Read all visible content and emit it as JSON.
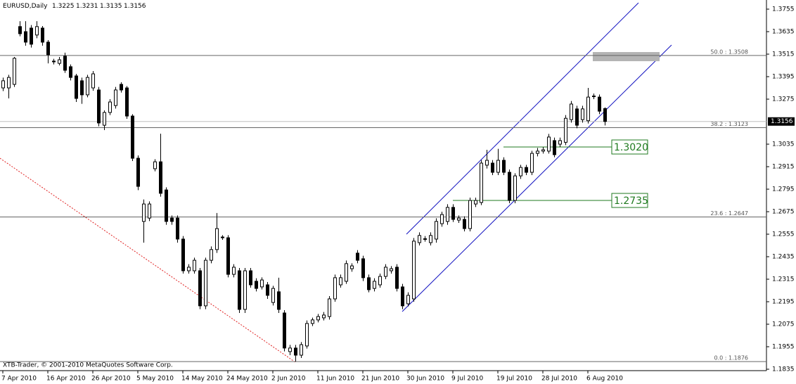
{
  "chart_data": {
    "type": "candlestick",
    "title": "EURUSD,Daily",
    "watermark": "XTB-Trader, © 2001-2010 MetaQuotes Software Corp.",
    "categories": [
      "7 Apr 2010",
      null,
      null,
      null,
      null,
      null,
      null,
      null,
      "16 Apr 2010",
      null,
      null,
      null,
      null,
      null,
      null,
      null,
      "26 Apr 2010",
      null,
      null,
      null,
      null,
      null,
      null,
      null,
      "5 May 2010",
      null,
      null,
      null,
      null,
      null,
      null,
      null,
      "14 May 2010",
      null,
      null,
      null,
      null,
      null,
      null,
      null,
      "24 May 2010",
      null,
      null,
      null,
      null,
      null,
      null,
      null,
      "2 Jun 2010",
      null,
      null,
      null,
      null,
      null,
      null,
      null,
      "11 Jun 2010",
      null,
      null,
      null,
      null,
      null,
      null,
      null,
      "21 Jun 2010",
      null,
      null,
      null,
      null,
      null,
      null,
      null,
      "30 Jun 2010",
      null,
      null,
      null,
      null,
      null,
      null,
      null,
      "9 Jul 2010",
      null,
      null,
      null,
      null,
      null,
      null,
      null,
      "19 Jul 2010",
      null,
      null,
      null,
      null,
      null,
      null,
      null,
      "28 Jul 2010",
      null,
      null,
      null,
      null,
      null,
      null,
      null,
      "6 Aug 2010",
      null,
      null,
      null
    ],
    "open": [
      1.3335,
      1.3335,
      1.3354,
      1.3662,
      1.3635,
      1.3654,
      1.3617,
      1.3654,
      1.3579,
      1.3478,
      1.3466,
      1.3504,
      1.3448,
      1.3399,
      1.3373,
      1.3298,
      1.3335,
      1.3324,
      1.3136,
      1.3204,
      1.3241,
      1.3354,
      1.3335,
      1.3185,
      1.296,
      1.2623,
      1.2641,
      1.2904,
      1.2941,
      1.2791,
      1.2641,
      1.2641,
      1.2529,
      1.236,
      1.236,
      1.236,
      1.2173,
      1.2416,
      1.2473,
      1.254,
      1.2536,
      1.2341,
      1.236,
      1.2154,
      1.236,
      1.2304,
      1.2274,
      1.2285,
      1.2191,
      1.2248,
      1.2135,
      1.1929,
      1.1948,
      1.191,
      1.1959,
      1.2079,
      1.2098,
      1.2109,
      1.2116,
      1.221,
      1.2285,
      1.2304,
      1.2371,
      1.2454,
      1.2424,
      1.2323,
      1.2266,
      1.2285,
      1.233,
      1.236,
      1.2379,
      1.2274,
      1.2184,
      1.221,
      1.251,
      1.2531,
      1.251,
      1.2529,
      1.2611,
      1.2623,
      1.2698,
      1.263,
      1.2634,
      1.2585,
      1.2716,
      1.2724,
      1.2923,
      1.2934,
      1.2885,
      1.2949,
      1.2885,
      1.2735,
      1.2866,
      1.2911,
      1.2885,
      1.2986,
      1.2998,
      1.2998,
      1.3054,
      1.3035,
      1.3045,
      1.3166,
      1.3223,
      1.3166,
      1.316,
      1.3292,
      1.3286,
      1.3225
    ],
    "high": [
      1.339,
      1.3405,
      1.35,
      1.3691,
      1.3691,
      1.367,
      1.3691,
      1.3665,
      1.359,
      1.349,
      1.35,
      1.3523,
      1.346,
      1.341,
      1.339,
      1.3405,
      1.3425,
      1.334,
      1.3215,
      1.3275,
      1.334,
      1.3365,
      1.3345,
      1.3195,
      1.2975,
      1.274,
      1.273,
      1.2955,
      1.3091,
      1.2805,
      1.2655,
      1.2655,
      1.2545,
      1.2395,
      1.243,
      1.2375,
      1.243,
      1.249,
      1.2668,
      1.255,
      1.255,
      1.2395,
      1.2375,
      1.2375,
      1.2375,
      1.232,
      1.2325,
      1.23,
      1.228,
      1.2323,
      1.215,
      1.1965,
      1.1965,
      1.198,
      1.2095,
      1.211,
      1.213,
      1.214,
      1.2225,
      1.234,
      1.234,
      1.2415,
      1.24,
      1.247,
      1.244,
      1.234,
      1.232,
      1.2345,
      1.2395,
      1.2385,
      1.2395,
      1.229,
      1.2245,
      1.2535,
      1.2565,
      1.2545,
      1.2565,
      1.264,
      1.2675,
      1.2715,
      1.2715,
      1.2655,
      1.265,
      1.275,
      1.275,
      1.295,
      1.3005,
      1.295,
      1.301,
      1.2965,
      1.29,
      1.288,
      1.2925,
      1.2925,
      1.3,
      1.3015,
      1.302,
      1.309,
      1.307,
      1.307,
      1.319,
      1.3265,
      1.324,
      1.324,
      1.3335,
      1.3305,
      1.33,
      1.3231
    ],
    "low": [
      1.3318,
      1.3279,
      1.334,
      1.361,
      1.356,
      1.355,
      1.36,
      1.356,
      1.3466,
      1.346,
      1.3455,
      1.3415,
      1.3375,
      1.326,
      1.325,
      1.3285,
      1.332,
      1.313,
      1.311,
      1.319,
      1.3225,
      1.331,
      1.317,
      1.2945,
      1.279,
      1.251,
      1.2625,
      1.289,
      1.2755,
      1.2605,
      1.2605,
      1.251,
      1.2345,
      1.2345,
      1.2345,
      1.2155,
      1.2155,
      1.24,
      1.2455,
      1.2525,
      1.2325,
      1.2325,
      1.2135,
      1.2135,
      1.227,
      1.225,
      1.226,
      1.221,
      1.2175,
      1.2135,
      1.193,
      1.191,
      1.1876,
      1.1895,
      1.1945,
      1.2065,
      1.2085,
      1.2095,
      1.21,
      1.2195,
      1.227,
      1.229,
      1.2355,
      1.24,
      1.2305,
      1.2245,
      1.225,
      1.227,
      1.2315,
      1.2345,
      1.225,
      1.2155,
      1.217,
      1.2195,
      1.2495,
      1.2515,
      1.2495,
      1.251,
      1.2595,
      1.2605,
      1.262,
      1.2615,
      1.257,
      1.257,
      1.27,
      1.271,
      1.2905,
      1.287,
      1.287,
      1.287,
      1.272,
      1.272,
      1.285,
      1.287,
      1.287,
      1.297,
      1.2985,
      1.2985,
      1.2965,
      1.302,
      1.303,
      1.315,
      1.312,
      1.315,
      1.3145,
      1.3275,
      1.3195,
      1.3135
    ],
    "close": [
      1.3373,
      1.3391,
      1.3493,
      1.3624,
      1.3579,
      1.3568,
      1.3662,
      1.3579,
      1.3512,
      1.3474,
      1.3485,
      1.3429,
      1.3391,
      1.3279,
      1.3298,
      1.3391,
      1.341,
      1.3148,
      1.3204,
      1.326,
      1.3324,
      1.3324,
      1.3185,
      1.296,
      1.281,
      1.2716,
      1.2716,
      1.2941,
      1.2773,
      1.2623,
      1.2623,
      1.2529,
      1.236,
      1.2379,
      1.2416,
      1.2173,
      1.2416,
      1.2473,
      1.2585,
      1.2536,
      1.2341,
      1.2379,
      1.2154,
      1.236,
      1.2285,
      1.2266,
      1.2311,
      1.2229,
      1.2266,
      1.2154,
      1.1948,
      1.1948,
      1.191,
      1.1966,
      1.2079,
      1.2098,
      1.2116,
      1.2124,
      1.221,
      1.2323,
      1.2323,
      1.2398,
      1.2386,
      1.2416,
      1.2323,
      1.2259,
      1.2304,
      1.233,
      1.2379,
      1.2371,
      1.2266,
      1.2173,
      1.2229,
      1.2518,
      1.2548,
      1.2529,
      1.2548,
      1.2623,
      1.266,
      1.2698,
      1.2634,
      1.2641,
      1.2585,
      1.2735,
      1.2735,
      1.2934,
      1.2949,
      1.2885,
      1.2949,
      1.2885,
      1.2735,
      1.2866,
      1.2911,
      1.2885,
      1.2986,
      1.2998,
      1.3005,
      1.3073,
      1.2979,
      1.3054,
      1.3173,
      1.3249,
      1.3136,
      1.3223,
      1.3286,
      1.329,
      1.3211,
      1.3156
    ],
    "up_color": "#ffffff",
    "down_color": "#000000",
    "ylim": [
      1.1835,
      1.3755
    ],
    "yticks": [
      1.3755,
      1.3635,
      1.3515,
      1.3395,
      1.3275,
      1.3035,
      1.2915,
      1.2795,
      1.2675,
      1.2555,
      1.2435,
      1.2315,
      1.2195,
      1.2075,
      1.1955,
      1.1835
    ],
    "fib_levels": [
      {
        "value": 1.3508,
        "label": "50.0 : 1.3508"
      },
      {
        "value": 1.3123,
        "label": "38.2 : 1.3123"
      },
      {
        "value": 1.2647,
        "label": "23.6 : 1.2647"
      },
      {
        "value": 1.1876,
        "label": "0.0 : 1.1876"
      }
    ],
    "annotations": [
      {
        "value": 1.302,
        "label": "1.3020"
      },
      {
        "value": 1.2735,
        "label": "1.2735"
      }
    ],
    "annotation_color": "#1f7a1f"
  }
}
